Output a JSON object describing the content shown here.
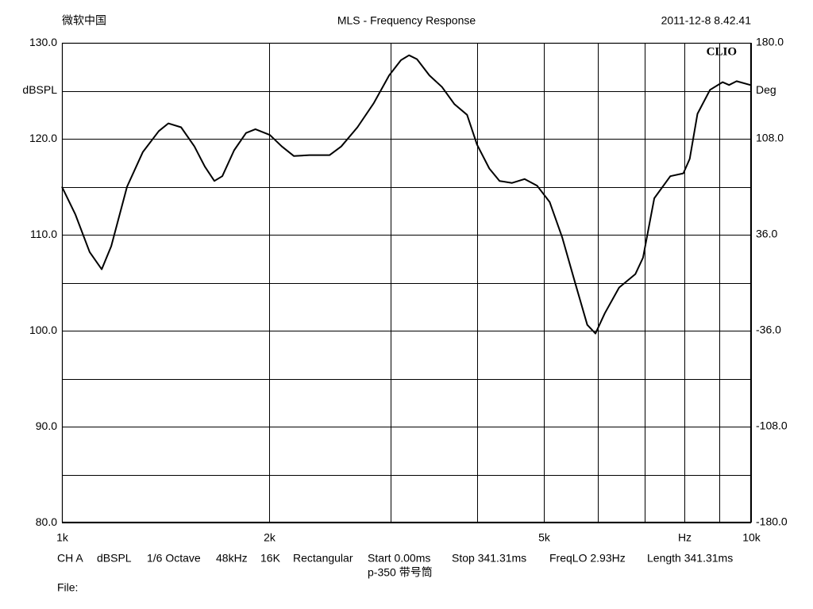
{
  "chart_data": {
    "type": "line",
    "title": "MLS - Frequency Response",
    "header_left": "微软中国",
    "header_right": "2011-12-8 8.42.41",
    "brand": "CLIO",
    "ylabel": "dBSPL",
    "y2label": "Deg",
    "x_log": true,
    "xlim": [
      1000,
      10000
    ],
    "xticks": [
      {
        "value": 1000,
        "label": "1k"
      },
      {
        "value": 2000,
        "label": "2k"
      },
      {
        "value": 5000,
        "label": "5k"
      },
      {
        "value": 8000,
        "label": "Hz"
      },
      {
        "value": 10000,
        "label": "10k"
      }
    ],
    "xgrid_minor": [
      3000,
      4000,
      6000,
      7000,
      9000
    ],
    "ylim": [
      80,
      130
    ],
    "yticks": [
      {
        "value": 80,
        "label": "80.0"
      },
      {
        "value": 90,
        "label": "90.0"
      },
      {
        "value": 100,
        "label": "100.0"
      },
      {
        "value": 110,
        "label": "110.0"
      },
      {
        "value": 120,
        "label": "120.0"
      },
      {
        "value": 130,
        "label": "130.0"
      }
    ],
    "ygrid_minor": [
      85,
      95,
      105,
      115,
      125
    ],
    "y2lim": [
      -180,
      180
    ],
    "y2ticks": [
      {
        "value": -180,
        "label": "-180.0"
      },
      {
        "value": -108,
        "label": "-108.0"
      },
      {
        "value": -36,
        "label": "-36.0"
      },
      {
        "value": 36,
        "label": "36.0"
      },
      {
        "value": 108,
        "label": "108.0"
      },
      {
        "value": 180,
        "label": "180.0"
      }
    ],
    "grid": true,
    "series": [
      {
        "name": "dBSPL",
        "color": "#000000",
        "x": [
          1000,
          1046,
          1097,
          1142,
          1179,
          1243,
          1310,
          1382,
          1427,
          1489,
          1557,
          1612,
          1664,
          1709,
          1778,
          1850,
          1909,
          2003,
          2085,
          2171,
          2287,
          2446,
          2543,
          2684,
          2834,
          2984,
          3105,
          3189,
          3275,
          3414,
          3560,
          3712,
          3872,
          4002,
          4170,
          4315,
          4499,
          4692,
          4893,
          5103,
          5321,
          5549,
          5786,
          5945,
          6133,
          6435,
          6795,
          6970,
          7237,
          7636,
          7975,
          8145,
          8361,
          8718,
          9091,
          9291,
          9528,
          9977
        ],
        "values": [
          115.0,
          112.1,
          108.2,
          106.4,
          108.8,
          115.0,
          118.6,
          120.8,
          121.6,
          121.2,
          119.2,
          117.1,
          115.6,
          116.1,
          118.8,
          120.6,
          121.0,
          120.4,
          119.2,
          118.2,
          118.3,
          118.3,
          119.2,
          121.2,
          123.7,
          126.6,
          128.2,
          128.7,
          128.3,
          126.6,
          125.4,
          123.6,
          122.5,
          119.4,
          116.9,
          115.6,
          115.4,
          115.8,
          115.1,
          113.4,
          109.7,
          105.1,
          100.6,
          99.7,
          101.8,
          104.5,
          105.9,
          107.6,
          113.8,
          116.1,
          116.4,
          117.9,
          122.6,
          125.1,
          125.9,
          125.6,
          126.0,
          125.6
        ]
      }
    ],
    "footer_info": [
      "CH A",
      "dBSPL",
      "1/6 Octave",
      "48kHz",
      "16K",
      "Rectangular",
      "Start 0.00ms",
      "Stop 341.31ms",
      "FreqLO 2.93Hz",
      "Length 341.31ms"
    ],
    "footer_note": "p-350 带号筒",
    "file_label": "File:"
  }
}
